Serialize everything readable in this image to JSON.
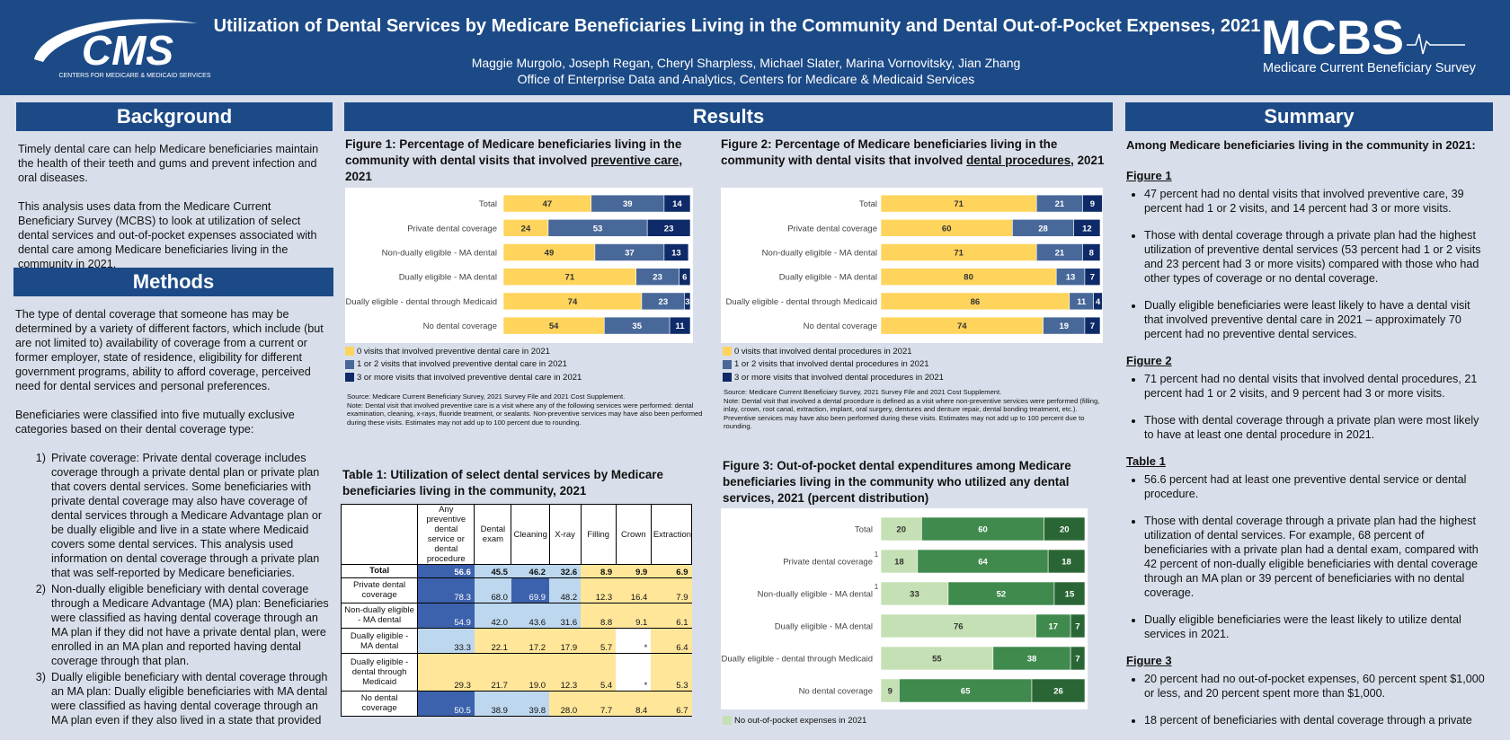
{
  "header": {
    "logo_left": "CMS",
    "logo_left_sub": "CENTERS FOR MEDICARE & MEDICAID SERVICES",
    "title": "Utilization of Dental Services by Medicare Beneficiaries Living in the Community and Dental Out-of-Pocket Expenses, 2021",
    "authors": "Maggie Murgolo, Joseph Regan, Cheryl Sharpless, Michael Slater, Marina Vornovitsky, Jian Zhang",
    "affiliation": "Office of Enterprise Data and Analytics, Centers for Medicare & Medicaid Services",
    "logo_right": "MCBS",
    "logo_right_sub": "Medicare Current Beneficiary Survey"
  },
  "background": {
    "heading": "Background",
    "paragraphs": [
      "Timely dental care can help Medicare beneficiaries maintain the health of their teeth and gums and prevent infection and oral diseases.",
      "This analysis uses data from the Medicare Current Beneficiary Survey (MCBS) to look at utilization of select dental services and out-of-pocket expenses associated with dental care among Medicare beneficiaries living in the community in 2021."
    ]
  },
  "methods": {
    "heading": "Methods",
    "paragraphs": [
      "The type of dental coverage that someone has may be determined by a variety of different factors, which include (but are not limited to) availability of coverage from a current or former employer, state of residence, eligibility for different government programs, ability to afford coverage, perceived need for dental services and personal preferences.",
      "Beneficiaries were classified into five mutually exclusive categories based on their dental coverage type:"
    ],
    "list": [
      {
        "marker": "1)",
        "text": "Private coverage: Private dental coverage includes coverage through a private dental plan or private plan that covers dental services. Some beneficiaries with private dental coverage may also have coverage of dental services through a Medicare Advantage plan or be dually eligible and live in a state where Medicaid covers some dental services. This analysis used information on dental coverage through a private plan that was self-reported by Medicare beneficiaries."
      },
      {
        "marker": "2)",
        "text": "Non-dually eligible beneficiary with dental coverage through a Medicare Advantage (MA) plan: Beneficiaries were classified as having dental coverage through an MA plan if they did not have a private dental plan, were enrolled in an MA plan and reported having dental coverage through that plan."
      },
      {
        "marker": "3)",
        "text": "Dually eligible beneficiary with dental coverage through an MA plan: Dually eligible beneficiaries with MA dental were classified as having dental coverage through an MA plan even if they also lived in a state that provided"
      }
    ]
  },
  "results": {
    "heading": "Results"
  },
  "figures": [
    {
      "type": "bar",
      "orientation": "horizontal",
      "stacked": true,
      "title_parts": [
        "Figure 1:  Percentage of Medicare beneficiaries living in the community with dental visits that involved ",
        "preventive care",
        ", 2021"
      ],
      "categories": [
        "Total",
        "Private dental coverage",
        "Non-dually eligible - MA dental",
        "Dually eligible - MA dental",
        "Dually eligible - dental through Medicaid",
        "No dental coverage"
      ],
      "xlim": [
        0,
        100
      ],
      "series": [
        {
          "name": "0 visits that involved preventive dental care in 2021",
          "color": "#ffd45c",
          "label_color": "#333333",
          "values": [
            47,
            24,
            49,
            71,
            74,
            54
          ]
        },
        {
          "name": "1 or 2 visits that involved preventive dental care in 2021",
          "color": "#48689a",
          "label_color": "#ffffff",
          "values": [
            39,
            53,
            37,
            23,
            23,
            35
          ]
        },
        {
          "name": "3 or more visits that involved preventive dental care in 2021",
          "color": "#0e2a68",
          "label_color": "#ffffff",
          "values": [
            14,
            23,
            13,
            6,
            3,
            11
          ]
        }
      ],
      "source": "Source: Medicare Current Beneficiary Survey, 2021 Survey File and 2021 Cost Supplement.",
      "note": "Note: Dental visit that involved preventive care is a visit where any of the following services were performed: dental examination, cleaning, x-rays, fluoride treatment, or sealants. Non-preventive services may have also been performed during these visits. Estimates may not add up to 100 percent due to rounding."
    },
    {
      "type": "bar",
      "orientation": "horizontal",
      "stacked": true,
      "title_parts": [
        "Figure 2:  Percentage of Medicare beneficiaries living in the community with dental visits that involved ",
        "dental procedures",
        ", 2021"
      ],
      "categories": [
        "Total",
        "Private dental coverage",
        "Non-dually eligible - MA dental",
        "Dually eligible - MA dental",
        "Dually eligible - dental through Medicaid",
        "No dental coverage"
      ],
      "xlim": [
        0,
        100
      ],
      "series": [
        {
          "name": "0 visits that involved dental procedures in 2021",
          "color": "#ffd45c",
          "label_color": "#333333",
          "values": [
            71,
            60,
            71,
            80,
            86,
            74
          ]
        },
        {
          "name": "1 or 2 visits that involved dental procedures in 2021",
          "color": "#48689a",
          "label_color": "#ffffff",
          "values": [
            21,
            28,
            21,
            13,
            11,
            19
          ]
        },
        {
          "name": "3 or more visits that involved dental procedures in 2021",
          "color": "#0e2a68",
          "label_color": "#ffffff",
          "values": [
            9,
            12,
            8,
            7,
            4,
            7
          ]
        }
      ],
      "source": "Source: Medicare Current Beneficiary Survey, 2021 Survey File and 2021 Cost Supplement.",
      "note": "Note: Dental visit that involved a dental procedure is defined as a visit where non-preventive services were performed (filling, inlay, crown, root canal, extraction, implant, oral surgery, dentures and denture repair, dental bonding treatment, etc.). Preventive services may have also been performed during these visits. Estimates may not add up to 100 percent due to rounding."
    },
    {
      "type": "bar",
      "orientation": "horizontal",
      "stacked": true,
      "title_parts": [
        "Figure 3: Out-of-pocket dental expenditures among Medicare beneficiaries living in the community who utilized any dental services, 2021 (percent distribution)"
      ],
      "categories": [
        "Total",
        "Private dental coverage",
        "Non-dually eligible - MA dental",
        "Dually eligible - MA dental",
        "Dually eligible - dental through Medicaid",
        "No dental coverage"
      ],
      "category_notes": [
        null,
        "1",
        "1",
        null,
        null,
        null
      ],
      "xlim": [
        0,
        100
      ],
      "series": [
        {
          "name": "No out-of-pocket expenses in 2021",
          "color": "#c5e0b4",
          "label_color": "#333333",
          "values": [
            20,
            18,
            33,
            76,
            55,
            9
          ]
        },
        {
          "color": "#3f8a4c",
          "label_color": "#ffffff",
          "values": [
            60,
            64,
            52,
            17,
            38,
            65
          ]
        },
        {
          "color": "#2a6635",
          "label_color": "#ffffff",
          "values": [
            20,
            18,
            15,
            7,
            7,
            26
          ]
        }
      ]
    }
  ],
  "table1": {
    "title": "Table 1:  Utilization of select dental services by Medicare beneficiaries living in the community, 2021",
    "columns": [
      "Any preventive dental service or dental procedure",
      "Dental exam",
      "Cleaning",
      "X-ray",
      "Filling",
      "Crown",
      "Extraction"
    ],
    "rows": [
      {
        "label": "Total",
        "values": [
          "56.6",
          "45.5",
          "46.2",
          "32.6",
          "8.9",
          "9.9",
          "6.9"
        ],
        "colors": [
          "#3d62ad",
          "#bdd7ee",
          "#bdd7ee",
          "#bdd7ee",
          "#ffe699",
          "#ffe699",
          "#ffe699"
        ]
      },
      {
        "label": "Private dental coverage",
        "values": [
          "78.3",
          "68.0",
          "69.9",
          "48.2",
          "12.3",
          "16.4",
          "7.9"
        ],
        "colors": [
          "#3d62ad",
          "#bdd7ee",
          "#3d62ad",
          "#bdd7ee",
          "#ffe699",
          "#ffe699",
          "#ffe699"
        ]
      },
      {
        "label": "Non-dually eligible - MA dental",
        "values": [
          "54.9",
          "42.0",
          "43.6",
          "31.6",
          "8.8",
          "9.1",
          "6.1"
        ],
        "colors": [
          "#3d62ad",
          "#bdd7ee",
          "#bdd7ee",
          "#bdd7ee",
          "#ffe699",
          "#ffe699",
          "#ffe699"
        ]
      },
      {
        "label": "Dually eligible - MA dental",
        "values": [
          "33.3",
          "22.1",
          "17.2",
          "17.9",
          "5.7",
          "*",
          "6.4"
        ],
        "colors": [
          "#bdd7ee",
          "#ffe699",
          "#ffe699",
          "#ffe699",
          "#ffe699",
          "#ffffff",
          "#ffe699"
        ]
      },
      {
        "label": "Dually eligible - dental through Medicaid",
        "values": [
          "29.3",
          "21.7",
          "19.0",
          "12.3",
          "5.4",
          "*",
          "5.3"
        ],
        "colors": [
          "#ffe699",
          "#ffe699",
          "#ffe699",
          "#ffe699",
          "#ffe699",
          "#ffffff",
          "#ffe699"
        ]
      },
      {
        "label": "No dental coverage",
        "values": [
          "50.5",
          "38.9",
          "39.8",
          "28.0",
          "7.7",
          "8.4",
          "6.7"
        ],
        "colors": [
          "#3d62ad",
          "#bdd7ee",
          "#bdd7ee",
          "#ffe699",
          "#ffe699",
          "#ffe699",
          "#ffe699"
        ]
      }
    ]
  },
  "summary": {
    "heading": "Summary",
    "intro": "Among Medicare beneficiaries living in the community in 2021:",
    "sections": [
      {
        "heading": "Figure 1",
        "bullets": [
          "47 percent had no dental visits that involved preventive care, 39 percent had 1 or 2 visits, and 14 percent had 3 or more visits.",
          "Those with dental coverage through a private plan had the highest utilization of preventive dental services (53 percent had 1 or 2 visits and 23 percent had 3 or more visits) compared with those who had other types of coverage or no dental coverage.",
          "Dually eligible beneficiaries were least likely to have a dental visit that involved preventive dental care in 2021 –  approximately 70 percent had no preventive dental services."
        ]
      },
      {
        "heading": "Figure 2",
        "bullets": [
          "71 percent had no dental visits that involved dental procedures, 21 percent had 1 or 2 visits, and 9 percent had 3 or more visits.",
          "Those with dental coverage through a private plan were most likely to have at least one dental procedure in 2021."
        ]
      },
      {
        "heading": "Table 1",
        "bullets": [
          "56.6 percent had at least one preventive dental service or dental procedure.",
          "Those with dental coverage through a private plan had the highest utilization of dental services. For example, 68 percent of beneficiaries with a private plan had a dental exam, compared with 42 percent of non-dually eligible beneficiaries with dental coverage through an MA plan or 39 percent of beneficiaries with no dental coverage.",
          "Dually eligible beneficiaries were the least likely to utilize dental services in 2021."
        ]
      },
      {
        "heading": "Figure 3",
        "bullets": [
          "20 percent had no out-of-pocket expenses, 60 percent spent $1,000 or less, and 20 percent spent more than $1,000.",
          "18 percent of beneficiaries with dental coverage through a private"
        ]
      }
    ]
  }
}
